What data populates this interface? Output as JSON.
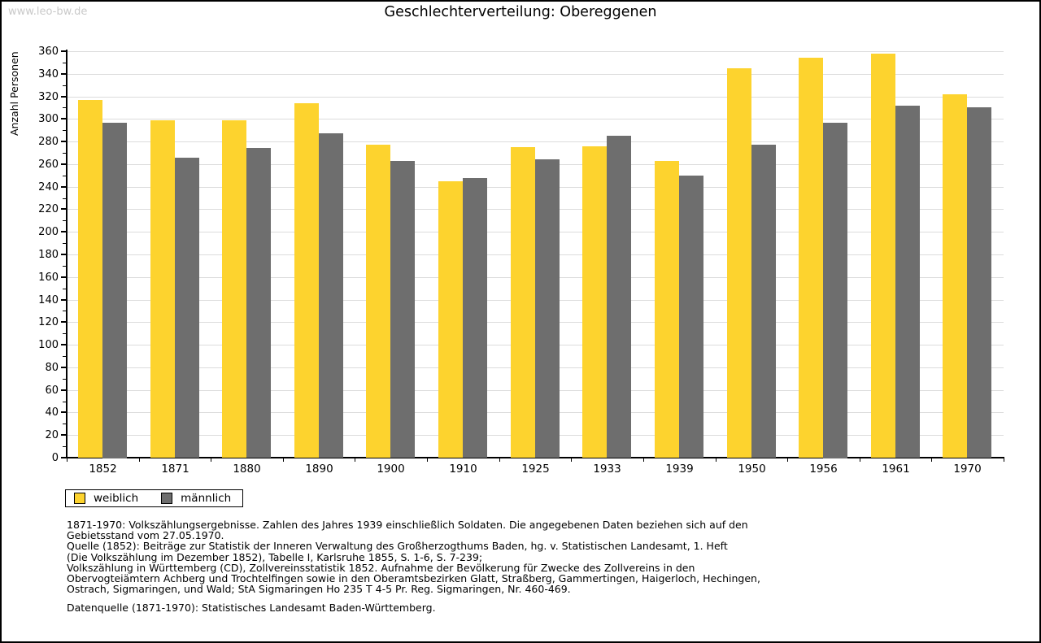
{
  "watermark": "www.leo-bw.de",
  "title": "Geschlechterverteilung: Obereggenen",
  "chart_data": {
    "type": "bar",
    "title": "Geschlechterverteilung: Obereggenen",
    "xlabel": "",
    "ylabel": "Anzahl Personen",
    "categories": [
      "1852",
      "1871",
      "1880",
      "1890",
      "1900",
      "1910",
      "1925",
      "1933",
      "1939",
      "1950",
      "1956",
      "1961",
      "1970"
    ],
    "series": [
      {
        "name": "weiblich",
        "color": "#FDD32E",
        "values": [
          317,
          299,
          299,
          314,
          277,
          245,
          275,
          276,
          263,
          345,
          354,
          358,
          322
        ]
      },
      {
        "name": "männlich",
        "color": "#6E6E6E",
        "values": [
          297,
          266,
          274,
          287,
          263,
          248,
          264,
          285,
          250,
          277,
          297,
          312,
          310
        ]
      }
    ],
    "ylim": [
      0,
      360
    ],
    "ytick_step": 20,
    "yminor_step": 10,
    "grid": true,
    "gridline_color": "#dcdcdc",
    "legend_position": "bottom-left"
  },
  "legend": {
    "items": [
      {
        "label": "weiblich",
        "color": "#FDD32E"
      },
      {
        "label": "männlich",
        "color": "#6E6E6E"
      }
    ]
  },
  "footnotes": {
    "lines": [
      "1871-1970: Volkszählungsergebnisse. Zahlen des Jahres 1939 einschließlich Soldaten. Die angegebenen Daten beziehen sich auf den",
      "Gebietsstand vom 27.05.1970.",
      "Quelle (1852): Beiträge zur Statistik der Inneren Verwaltung des Großherzogthums Baden, hg. v. Statistischen Landesamt, 1. Heft",
      "(Die Volkszählung im Dezember 1852), Tabelle I, Karlsruhe 1855, S. 1-6, S. 7-239;",
      "Volkszählung in Württemberg (CD), Zollvereinsstatistik 1852. Aufnahme der Bevölkerung für Zwecke des Zollvereins in den",
      "Obervogteiämtern Achberg und Trochtelfingen sowie in den Oberamtsbezirken Glatt, Straßberg, Gammertingen, Haigerloch, Hechingen,",
      "Ostrach, Sigmaringen, und Wald; StA Sigmaringen Ho 235 T 4-5 Pr. Reg. Sigmaringen, Nr. 460-469."
    ],
    "datasource": "Datenquelle (1871-1970): Statistisches Landesamt Baden-Württemberg."
  },
  "colors": {
    "weiblich": "#FDD32E",
    "maennlich": "#6E6E6E",
    "gridline": "#dcdcdc",
    "watermark": "#c9c9c9",
    "axis": "#000000",
    "border": "#000000"
  }
}
